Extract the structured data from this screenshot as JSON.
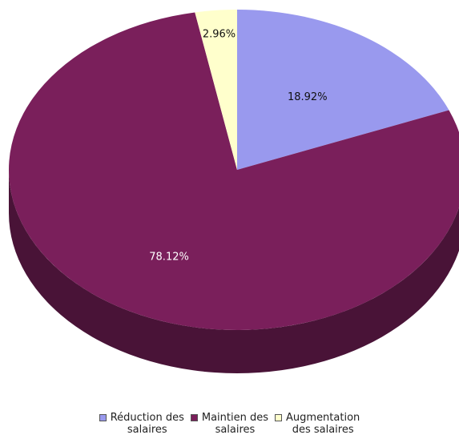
{
  "chart_data": {
    "type": "pie",
    "title": "",
    "categories": [
      "Réduction des salaires",
      "Maintien des salaires",
      "Augmentation des salaires"
    ],
    "values": [
      18.92,
      78.12,
      2.96
    ],
    "data_labels": [
      "18.92%",
      "78.12%",
      "2.96%"
    ],
    "colors": [
      "#9999ee",
      "#7a1f5b",
      "#ffffcc"
    ],
    "legend": [
      {
        "line1": "Réduction des",
        "line2": "salaires"
      },
      {
        "line1": "Maintien des",
        "line2": "salaires"
      },
      {
        "line1": "Augmentation",
        "line2": "des salaires"
      }
    ],
    "legend_position": "bottom",
    "label_colors": [
      "#111111",
      "#ffffff",
      "#111111"
    ],
    "style": "3d"
  }
}
